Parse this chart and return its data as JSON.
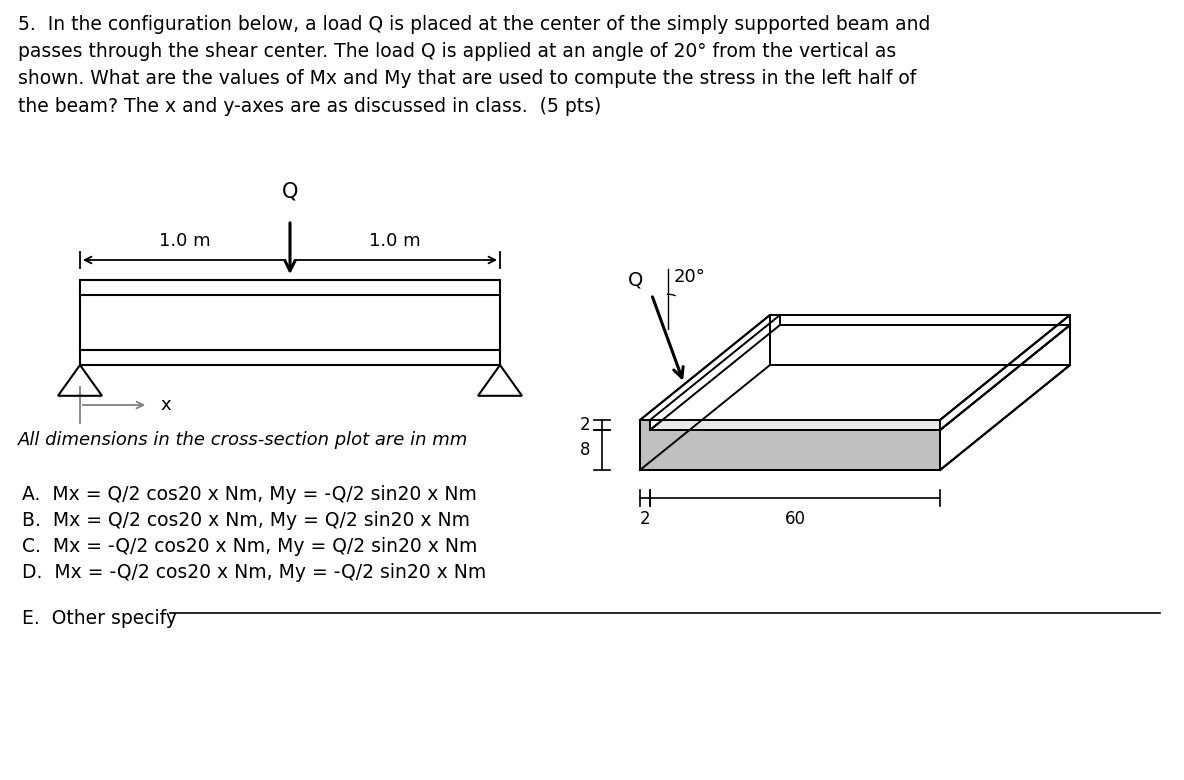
{
  "background_color": "#ffffff",
  "title_text": "5.  In the configuration below, a load Q is placed at the center of the simply supported beam and\npasses through the shear center. The load Q is applied at an angle of 20° from the vertical as\nshown. What are the values of Mx and My that are used to compute the stress in the left half of\nthe beam? The x and y-axes are as discussed in class.  (5 pts)",
  "title_fontsize": 13.5,
  "answers": [
    "A.  Mx = Q/2 cos20 x Nm, My = -Q/2 sin20 x Nm",
    "B.  Mx = Q/2 cos20 x Nm, My = Q/2 sin20 x Nm",
    "C.  Mx = -Q/2 cos20 x Nm, My = Q/2 sin20 x Nm",
    "D.  Mx = -Q/2 cos20 x Nm, My = -Q/2 sin20 x Nm"
  ],
  "answer_e": "E.  Other specify",
  "answer_fontsize": 13.5,
  "dim_label": "All dimensions in the cross-section plot are in mm"
}
